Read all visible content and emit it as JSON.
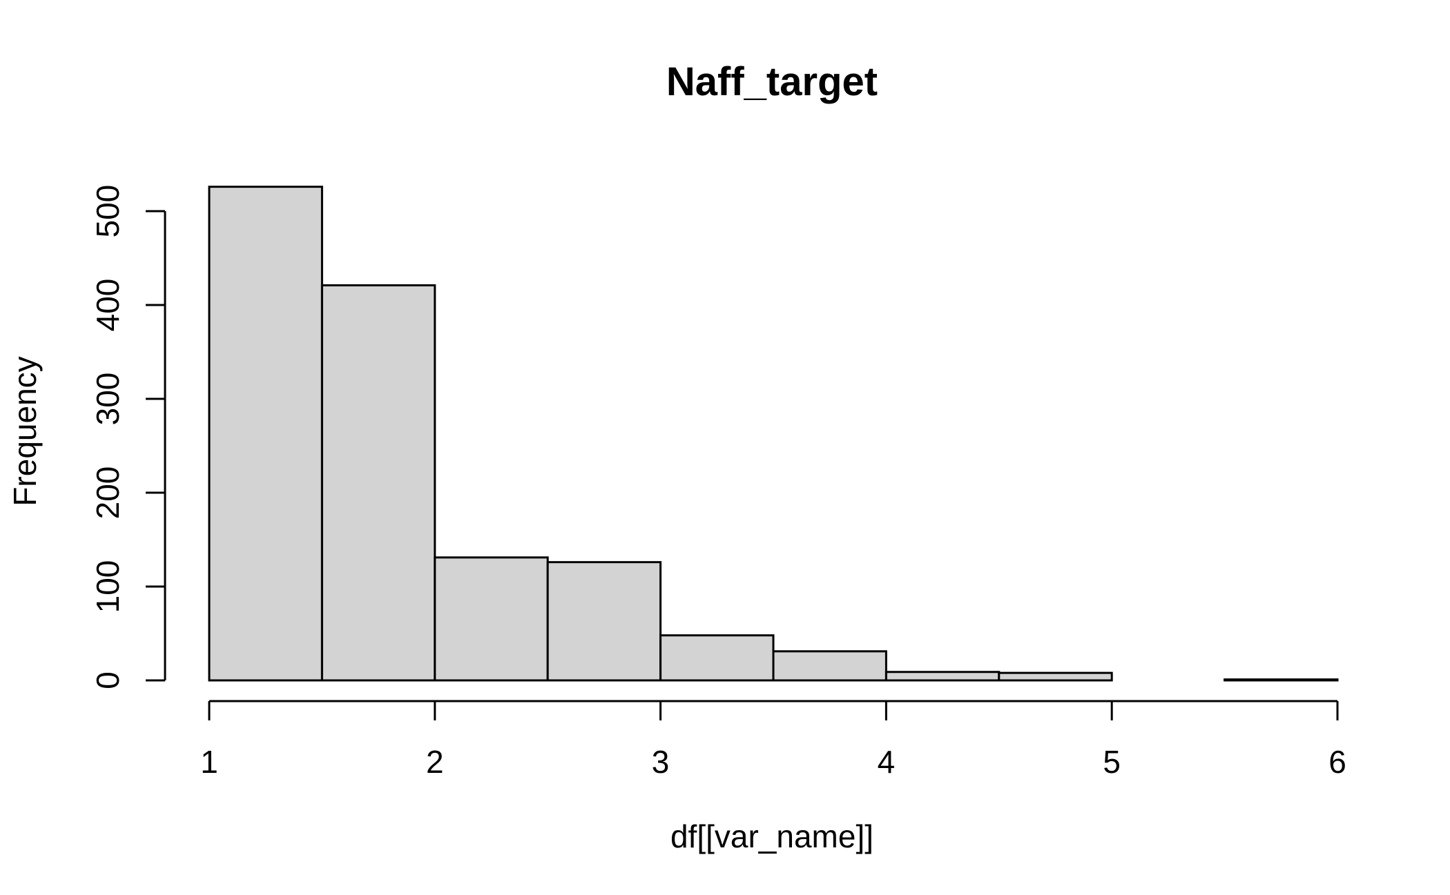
{
  "chart_data": {
    "type": "bar",
    "title": "Naff_target",
    "xlabel": "df[[var_name]]",
    "ylabel": "Frequency",
    "bins": [
      {
        "from": 1.0,
        "to": 1.5,
        "count": 526
      },
      {
        "from": 1.5,
        "to": 2.0,
        "count": 421
      },
      {
        "from": 2.0,
        "to": 2.5,
        "count": 131
      },
      {
        "from": 2.5,
        "to": 3.0,
        "count": 126
      },
      {
        "from": 3.0,
        "to": 3.5,
        "count": 48
      },
      {
        "from": 3.5,
        "to": 4.0,
        "count": 31
      },
      {
        "from": 4.0,
        "to": 4.5,
        "count": 9
      },
      {
        "from": 4.5,
        "to": 5.0,
        "count": 8
      },
      {
        "from": 5.0,
        "to": 5.5,
        "count": 0
      },
      {
        "from": 5.5,
        "to": 6.0,
        "count": 1
      }
    ],
    "xlim": [
      1,
      6
    ],
    "ylim": [
      0,
      526
    ],
    "xticks": [
      "1",
      "2",
      "3",
      "4",
      "5",
      "6"
    ],
    "yticks": [
      "0",
      "100",
      "200",
      "300",
      "400",
      "500"
    ],
    "grid": false,
    "legend": "none",
    "colors": {
      "bar_fill": "#d3d3d3",
      "bar_stroke": "#000000"
    }
  }
}
